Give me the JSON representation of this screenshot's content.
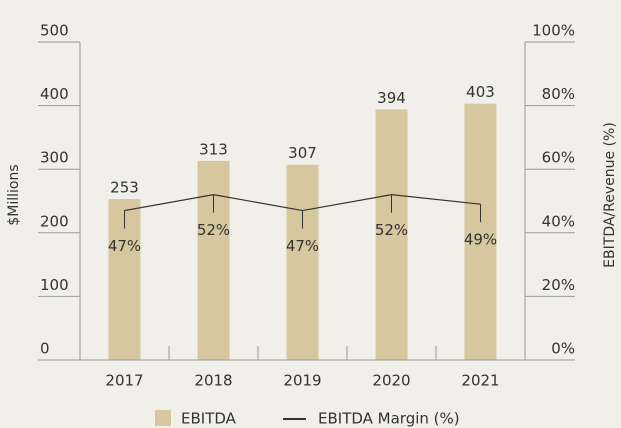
{
  "chart_data": {
    "type": "bar_line",
    "categories": [
      "2017",
      "2018",
      "2019",
      "2020",
      "2021"
    ],
    "series": [
      {
        "name": "EBITDA",
        "color": "#d6c79f",
        "values": [
          253,
          313,
          307,
          394,
          403
        ]
      },
      {
        "name": "EBITDA Margin (%)",
        "color": "#333333",
        "axis": "y2",
        "values": [
          47,
          52,
          47,
          52,
          49
        ],
        "value_labels": [
          "47%",
          "52%",
          "47%",
          "52%",
          "49%"
        ]
      }
    ],
    "ylabel": "$Millions",
    "y2label": "EBITDA/Revenue (%)",
    "ylim": [
      0,
      500
    ],
    "yticks": [
      0,
      100,
      200,
      300,
      400,
      500
    ],
    "y2lim": [
      0,
      100
    ],
    "y2ticks": [
      {
        "value": 0,
        "label": "0%"
      },
      {
        "value": 20,
        "label": "20%"
      },
      {
        "value": 40,
        "label": "40%"
      },
      {
        "value": 60,
        "label": "60%"
      },
      {
        "value": 80,
        "label": "80%"
      },
      {
        "value": 100,
        "label": "100%"
      }
    ],
    "legend": "bottom"
  }
}
